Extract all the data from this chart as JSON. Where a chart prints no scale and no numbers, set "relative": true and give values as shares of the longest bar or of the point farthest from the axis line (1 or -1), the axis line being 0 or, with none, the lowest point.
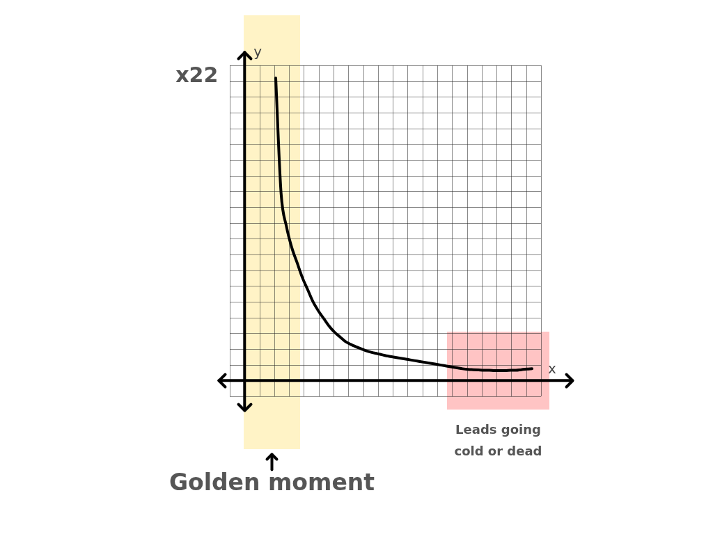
{
  "chart_data": {
    "type": "line",
    "relative": true,
    "xlabel": "x",
    "ylabel": "y",
    "grid": true,
    "categories": [
      null,
      null,
      null,
      null,
      null,
      null,
      null,
      null,
      null,
      null,
      null,
      null,
      null,
      null,
      null,
      null,
      null,
      null,
      null,
      null,
      null,
      null,
      null,
      null,
      null,
      null,
      null,
      null,
      null,
      null,
      null,
      null,
      null,
      null,
      null,
      null,
      null,
      null,
      null,
      null,
      null,
      null,
      null,
      null,
      null,
      null,
      null,
      null,
      null
    ],
    "series": [
      {
        "color": "#000000",
        "values": [
          1,
          0.62,
          0.51,
          0.44,
          0.39,
          0.34,
          0.3,
          0.26,
          0.23,
          0.205,
          0.18,
          0.16,
          0.145,
          0.13,
          0.12,
          0.112,
          0.105,
          0.098,
          0.093,
          0.089,
          0.085,
          0.081,
          0.078,
          0.075,
          0.072,
          0.069,
          0.066,
          0.063,
          0.06,
          0.057,
          0.054,
          0.051,
          0.048,
          0.045,
          0.042,
          0.039,
          0.037,
          0.036,
          0.035,
          0.034,
          0.034,
          0.033,
          0.033,
          0.033,
          0.034,
          0.034,
          0.036,
          0.038,
          0.039
        ]
      }
    ],
    "annotations": [
      "x22",
      "Golden moment",
      "Leads going cold or dead"
    ]
  }
}
